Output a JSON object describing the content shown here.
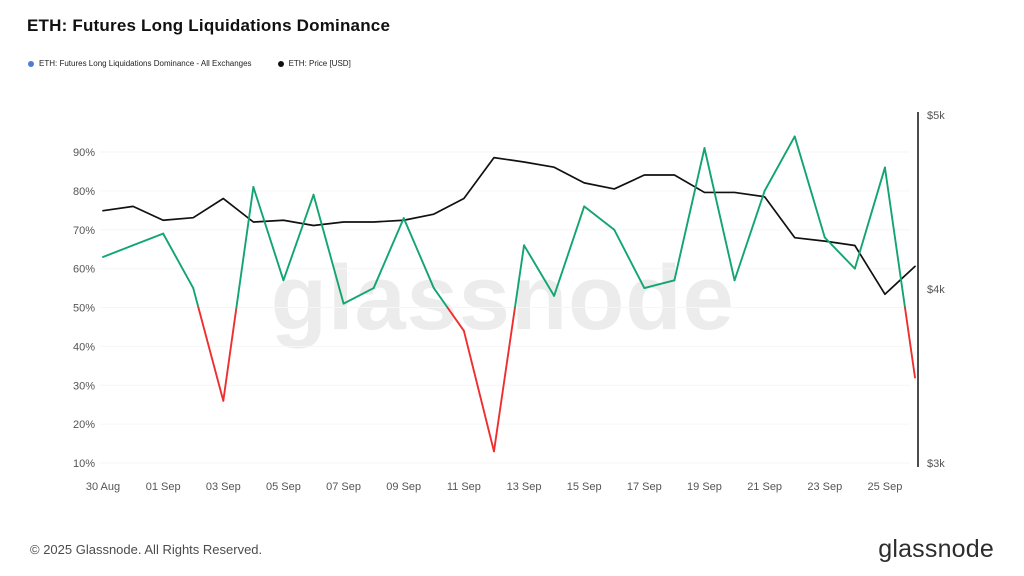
{
  "page": {
    "title": "ETH: Futures Long Liquidations Dominance",
    "watermark": "glassnode",
    "footer_copyright": "© 2025 Glassnode. All Rights Reserved.",
    "brand": "glassnode"
  },
  "legend": [
    {
      "label": "ETH: Futures Long Liquidations Dominance - All Exchanges",
      "color": "#4d7cd6"
    },
    {
      "label": "ETH: Price [USD]",
      "color": "#111111"
    }
  ],
  "chart_data": {
    "type": "line",
    "title": "ETH: Futures Long Liquidations Dominance",
    "grid": "horizontal-faint",
    "legend_position": "top-left",
    "x": [
      "30 Aug",
      "31 Aug",
      "01 Sep",
      "02 Sep",
      "03 Sep",
      "04 Sep",
      "05 Sep",
      "06 Sep",
      "07 Sep",
      "08 Sep",
      "09 Sep",
      "10 Sep",
      "11 Sep",
      "12 Sep",
      "13 Sep",
      "14 Sep",
      "15 Sep",
      "16 Sep",
      "17 Sep",
      "18 Sep",
      "19 Sep",
      "20 Sep",
      "21 Sep",
      "22 Sep",
      "23 Sep",
      "24 Sep",
      "25 Sep",
      "26 Sep"
    ],
    "x_tick_indexes": [
      0,
      2,
      4,
      6,
      8,
      10,
      12,
      14,
      16,
      18,
      20,
      22,
      24,
      26
    ],
    "left_axis": {
      "unit": "%",
      "min": 10,
      "max": 90,
      "tick_values": [
        10,
        20,
        30,
        40,
        50,
        60,
        70,
        80,
        90
      ],
      "tick_labels": [
        "10%",
        "20%",
        "30%",
        "40%",
        "50%",
        "60%",
        "70%",
        "80%",
        "90%"
      ]
    },
    "right_axis": {
      "unit": "USD",
      "min": 3000,
      "max": 5000,
      "tick_values": [
        3000,
        4000,
        5000
      ],
      "tick_labels": [
        "$3k",
        "$4k",
        "$5k"
      ]
    },
    "series": [
      {
        "name": "ETH: Futures Long Liquidations Dominance - All Exchanges",
        "axis": "left",
        "threshold": 50,
        "color_above": "#12a570",
        "color_below": "#ef2e2e",
        "values": [
          63,
          66,
          69,
          55,
          26,
          81,
          57,
          79,
          51,
          55,
          73,
          55,
          44,
          13,
          66,
          53,
          76,
          70,
          55,
          57,
          91,
          57,
          80,
          94,
          68,
          60,
          86,
          32
        ]
      },
      {
        "name": "ETH: Price [USD]",
        "axis": "right",
        "color": "#111111",
        "values": [
          4450,
          4475,
          4395,
          4410,
          4520,
          4385,
          4395,
          4365,
          4385,
          4385,
          4395,
          4430,
          4520,
          4755,
          4730,
          4700,
          4610,
          4575,
          4655,
          4655,
          4555,
          4555,
          4530,
          4295,
          4275,
          4250,
          3970,
          4130
        ]
      }
    ]
  }
}
